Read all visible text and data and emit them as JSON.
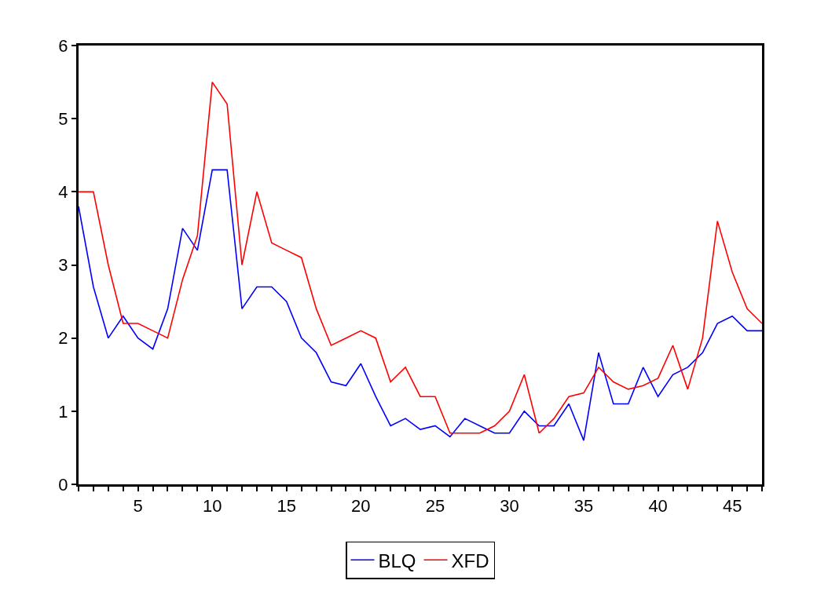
{
  "chart_data": {
    "type": "line",
    "x": [
      1,
      2,
      3,
      4,
      5,
      6,
      7,
      8,
      9,
      10,
      11,
      12,
      13,
      14,
      15,
      16,
      17,
      18,
      19,
      20,
      21,
      22,
      23,
      24,
      25,
      26,
      27,
      28,
      29,
      30,
      31,
      32,
      33,
      34,
      35,
      36,
      37,
      38,
      39,
      40,
      41,
      42,
      43,
      44,
      45,
      46,
      47
    ],
    "series": [
      {
        "name": "BLQ",
        "color": "#0000ff",
        "values": [
          3.8,
          2.7,
          2.0,
          2.3,
          2.0,
          1.85,
          2.4,
          3.5,
          3.2,
          4.3,
          4.3,
          2.4,
          2.7,
          2.7,
          2.5,
          2.0,
          1.8,
          1.4,
          1.35,
          1.65,
          1.2,
          0.8,
          0.9,
          0.75,
          0.8,
          0.65,
          0.9,
          0.8,
          0.7,
          0.7,
          1.0,
          0.8,
          0.8,
          1.1,
          0.6,
          1.8,
          1.1,
          1.1,
          1.6,
          1.2,
          1.5,
          1.6,
          1.8,
          2.2,
          2.3,
          2.1,
          2.1
        ]
      },
      {
        "name": "XFD",
        "color": "#ff0000",
        "values": [
          4.0,
          4.0,
          3.0,
          2.2,
          2.2,
          2.1,
          2.0,
          2.8,
          3.4,
          5.5,
          5.2,
          3.0,
          4.0,
          3.3,
          3.2,
          3.1,
          2.4,
          1.9,
          2.0,
          2.1,
          2.0,
          1.4,
          1.6,
          1.2,
          1.2,
          0.7,
          0.7,
          0.7,
          0.8,
          1.0,
          1.5,
          0.7,
          0.9,
          1.2,
          1.25,
          1.6,
          1.4,
          1.3,
          1.35,
          1.45,
          1.9,
          1.3,
          2.0,
          3.6,
          2.9,
          2.4,
          2.2
        ]
      }
    ],
    "xlim": [
      1,
      47
    ],
    "xticks": [
      {
        "value": 1,
        "label": null
      },
      {
        "value": 2,
        "label": null
      },
      {
        "value": 3,
        "label": null
      },
      {
        "value": 4,
        "label": null
      },
      5,
      {
        "value": 6,
        "label": null
      },
      {
        "value": 7,
        "label": null
      },
      {
        "value": 8,
        "label": null
      },
      {
        "value": 9,
        "label": null
      },
      10,
      {
        "value": 11,
        "label": null
      },
      {
        "value": 12,
        "label": null
      },
      {
        "value": 13,
        "label": null
      },
      {
        "value": 14,
        "label": null
      },
      15,
      {
        "value": 16,
        "label": null
      },
      {
        "value": 17,
        "label": null
      },
      {
        "value": 18,
        "label": null
      },
      {
        "value": 19,
        "label": null
      },
      20,
      {
        "value": 21,
        "label": null
      },
      {
        "value": 22,
        "label": null
      },
      {
        "value": 23,
        "label": null
      },
      {
        "value": 24,
        "label": null
      },
      25,
      {
        "value": 26,
        "label": null
      },
      {
        "value": 27,
        "label": null
      },
      {
        "value": 28,
        "label": null
      },
      {
        "value": 29,
        "label": null
      },
      30,
      {
        "value": 31,
        "label": null
      },
      {
        "value": 32,
        "label": null
      },
      {
        "value": 33,
        "label": null
      },
      {
        "value": 34,
        "label": null
      },
      35,
      {
        "value": 36,
        "label": null
      },
      {
        "value": 37,
        "label": null
      },
      {
        "value": 38,
        "label": null
      },
      {
        "value": 39,
        "label": null
      },
      40,
      {
        "value": 41,
        "label": null
      },
      {
        "value": 42,
        "label": null
      },
      {
        "value": 43,
        "label": null
      },
      {
        "value": 44,
        "label": null
      },
      45,
      {
        "value": 46,
        "label": null
      },
      {
        "value": 47,
        "label": null
      }
    ],
    "ylim": [
      0,
      6
    ],
    "yticks": [
      0,
      1,
      2,
      3,
      4,
      5,
      6
    ],
    "legend": "bottom",
    "marker": "none",
    "line_style": "solid"
  }
}
